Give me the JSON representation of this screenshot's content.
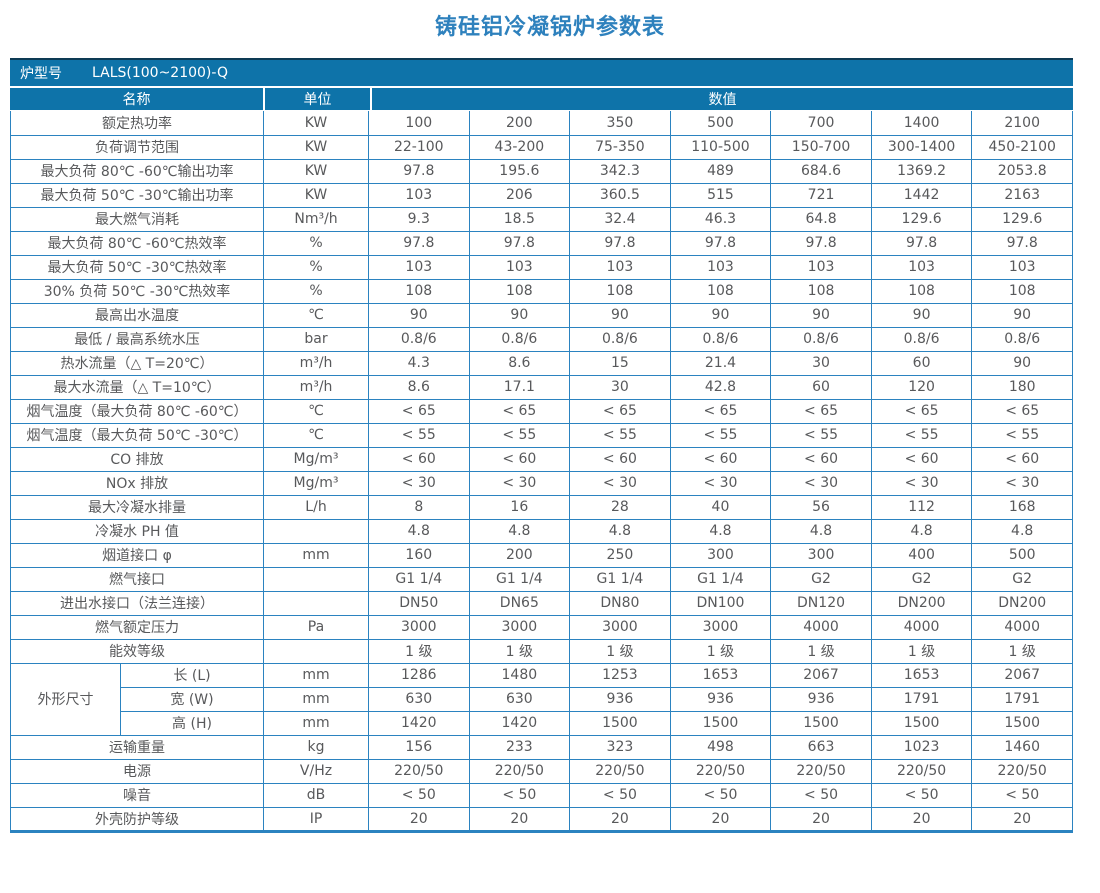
{
  "title": "铸硅铝冷凝锅炉参数表",
  "model_row": {
    "label": "炉型号",
    "value": "LALS(100~2100)-Q"
  },
  "header": {
    "name": "名称",
    "unit": "单位",
    "values": "数值"
  },
  "colors": {
    "header_bg": "#0e73a9",
    "border_blue": "#2b83c0",
    "title_blue": "#2e81bd",
    "text_gray": "#58595b",
    "top_dark_line": "#0d3a54"
  },
  "rows": [
    {
      "name": "额定热功率",
      "unit": "KW",
      "values": [
        "100",
        "200",
        "350",
        "500",
        "700",
        "1400",
        "2100"
      ]
    },
    {
      "name": "负荷调节范围",
      "unit": "KW",
      "values": [
        "22-100",
        "43-200",
        "75-350",
        "110-500",
        "150-700",
        "300-1400",
        "450-2100"
      ]
    },
    {
      "name": "最大负荷 80℃ -60℃输出功率",
      "unit": "KW",
      "values": [
        "97.8",
        "195.6",
        "342.3",
        "489",
        "684.6",
        "1369.2",
        "2053.8"
      ]
    },
    {
      "name": "最大负荷 50℃ -30℃输出功率",
      "unit": "KW",
      "values": [
        "103",
        "206",
        "360.5",
        "515",
        "721",
        "1442",
        "2163"
      ]
    },
    {
      "name": "最大燃气消耗",
      "unit": "Nm³/h",
      "values": [
        "9.3",
        "18.5",
        "32.4",
        "46.3",
        "64.8",
        "129.6",
        "129.6"
      ]
    },
    {
      "name": "最大负荷 80℃ -60℃热效率",
      "unit": "%",
      "values": [
        "97.8",
        "97.8",
        "97.8",
        "97.8",
        "97.8",
        "97.8",
        "97.8"
      ]
    },
    {
      "name": "最大负荷 50℃ -30℃热效率",
      "unit": "%",
      "values": [
        "103",
        "103",
        "103",
        "103",
        "103",
        "103",
        "103"
      ]
    },
    {
      "name": "30% 负荷 50℃ -30℃热效率",
      "unit": "%",
      "values": [
        "108",
        "108",
        "108",
        "108",
        "108",
        "108",
        "108"
      ]
    },
    {
      "name": "最高出水温度",
      "unit": "℃",
      "values": [
        "90",
        "90",
        "90",
        "90",
        "90",
        "90",
        "90"
      ]
    },
    {
      "name": "最低 / 最高系统水压",
      "unit": "bar",
      "values": [
        "0.8/6",
        "0.8/6",
        "0.8/6",
        "0.8/6",
        "0.8/6",
        "0.8/6",
        "0.8/6"
      ]
    },
    {
      "name": "热水流量（△ T=20℃）",
      "unit": "m³/h",
      "values": [
        "4.3",
        "8.6",
        "15",
        "21.4",
        "30",
        "60",
        "90"
      ]
    },
    {
      "name": "最大水流量（△ T=10℃）",
      "unit": "m³/h",
      "values": [
        "8.6",
        "17.1",
        "30",
        "42.8",
        "60",
        "120",
        "180"
      ]
    },
    {
      "name": "烟气温度（最大负荷 80℃ -60℃）",
      "unit": "℃",
      "values": [
        "< 65",
        "< 65",
        "< 65",
        "< 65",
        "< 65",
        "< 65",
        "< 65"
      ]
    },
    {
      "name": "烟气温度（最大负荷 50℃ -30℃）",
      "unit": "℃",
      "values": [
        "< 55",
        "< 55",
        "< 55",
        "< 55",
        "< 55",
        "< 55",
        "< 55"
      ]
    },
    {
      "name": "CO 排放",
      "unit": "Mg/m³",
      "values": [
        "< 60",
        "< 60",
        "< 60",
        "< 60",
        "< 60",
        "< 60",
        "< 60"
      ]
    },
    {
      "name": "NOx 排放",
      "unit": "Mg/m³",
      "values": [
        "< 30",
        "< 30",
        "< 30",
        "< 30",
        "< 30",
        "< 30",
        "< 30"
      ]
    },
    {
      "name": "最大冷凝水排量",
      "unit": "L/h",
      "values": [
        "8",
        "16",
        "28",
        "40",
        "56",
        "112",
        "168"
      ]
    },
    {
      "name": "冷凝水 PH 值",
      "unit": "",
      "values": [
        "4.8",
        "4.8",
        "4.8",
        "4.8",
        "4.8",
        "4.8",
        "4.8"
      ]
    },
    {
      "name": "烟道接口 φ",
      "unit": "mm",
      "values": [
        "160",
        "200",
        "250",
        "300",
        "300",
        "400",
        "500"
      ]
    },
    {
      "name": "燃气接口",
      "unit": "",
      "values": [
        "G1 1/4",
        "G1 1/4",
        "G1 1/4",
        "G1 1/4",
        "G2",
        "G2",
        "G2"
      ]
    },
    {
      "name": "进出水接口（法兰连接）",
      "unit": "",
      "values": [
        "DN50",
        "DN65",
        "DN80",
        "DN100",
        "DN120",
        "DN200",
        "DN200"
      ]
    },
    {
      "name": "燃气额定压力",
      "unit": "Pa",
      "values": [
        "3000",
        "3000",
        "3000",
        "3000",
        "4000",
        "4000",
        "4000"
      ]
    },
    {
      "name": "能效等级",
      "unit": "",
      "values": [
        "1 级",
        "1 级",
        "1 级",
        "1 级",
        "1 级",
        "1 级",
        "1 级"
      ]
    },
    {
      "group": "外形尺寸",
      "group_span": 3,
      "in_group": true,
      "name": "长 (L)",
      "unit": "mm",
      "values": [
        "1286",
        "1480",
        "1253",
        "1653",
        "2067",
        "1653",
        "2067"
      ]
    },
    {
      "in_group": true,
      "name": "宽 (W)",
      "unit": "mm",
      "values": [
        "630",
        "630",
        "936",
        "936",
        "936",
        "1791",
        "1791"
      ]
    },
    {
      "in_group": true,
      "name": "高 (H)",
      "unit": "mm",
      "values": [
        "1420",
        "1420",
        "1500",
        "1500",
        "1500",
        "1500",
        "1500"
      ]
    },
    {
      "name": "运输重量",
      "unit": "kg",
      "values": [
        "156",
        "233",
        "323",
        "498",
        "663",
        "1023",
        "1460"
      ]
    },
    {
      "name": "电源",
      "unit": "V/Hz",
      "values": [
        "220/50",
        "220/50",
        "220/50",
        "220/50",
        "220/50",
        "220/50",
        "220/50"
      ]
    },
    {
      "name": "噪音",
      "unit": "dB",
      "values": [
        "< 50",
        "< 50",
        "< 50",
        "< 50",
        "< 50",
        "< 50",
        "< 50"
      ]
    },
    {
      "name": "外壳防护等级",
      "unit": "IP",
      "values": [
        "20",
        "20",
        "20",
        "20",
        "20",
        "20",
        "20"
      ]
    }
  ]
}
